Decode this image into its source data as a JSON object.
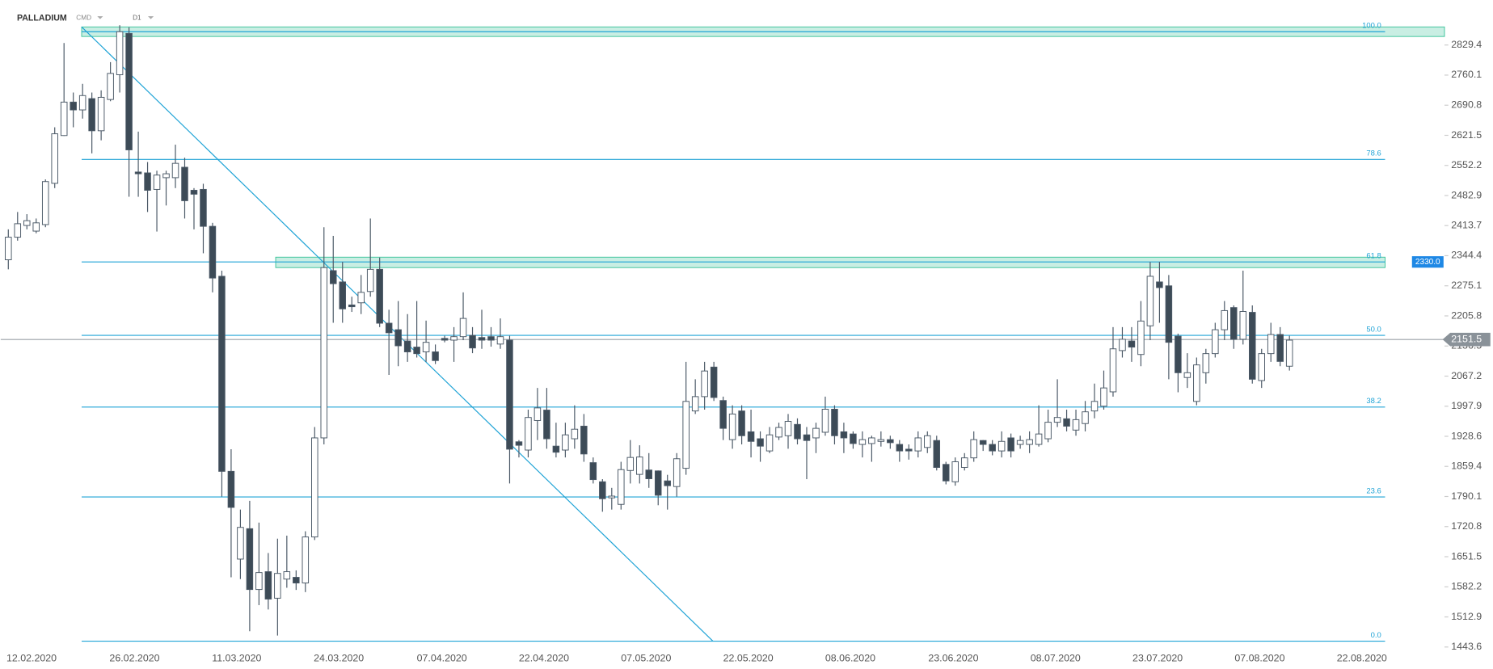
{
  "chart_data": {
    "type": "candlestick",
    "title": "PALLADIUM",
    "instrument_type": "CMD",
    "interval": "D1",
    "up_color": "#ffffff",
    "down_color": "#3d4b57",
    "wick_color": "#4a5866",
    "line_color": "#1fa3d6",
    "zone_color": "#3cc39a",
    "xlim": [
      -0.82,
      154.7
    ],
    "ylim": [
      1437,
      2933
    ],
    "xticks": [
      {
        "value": 2.5,
        "label": "12.02.2020"
      },
      {
        "value": 13.6,
        "label": "26.02.2020"
      },
      {
        "value": 24.6,
        "label": "11.03.2020"
      },
      {
        "value": 35.6,
        "label": "24.03.2020"
      },
      {
        "value": 46.7,
        "label": "07.04.2020"
      },
      {
        "value": 57.7,
        "label": "22.04.2020"
      },
      {
        "value": 68.7,
        "label": "07.05.2020"
      },
      {
        "value": 79.7,
        "label": "22.05.2020"
      },
      {
        "value": 90.7,
        "label": "08.06.2020"
      },
      {
        "value": 101.8,
        "label": "23.06.2020"
      },
      {
        "value": 112.8,
        "label": "08.07.2020"
      },
      {
        "value": 123.8,
        "label": "23.07.2020"
      },
      {
        "value": 134.8,
        "label": "07.08.2020"
      },
      {
        "value": 145.8,
        "label": "22.08.2020"
      }
    ],
    "yticks": [
      2829.4,
      2760.1,
      2690.8,
      2621.5,
      2552.2,
      2482.9,
      2413.7,
      2344.4,
      2275.1,
      2205.8,
      2136.5,
      2067.2,
      1997.9,
      1928.6,
      1859.4,
      1790.1,
      1720.8,
      1651.5,
      1582.2,
      1512.9,
      1443.6
    ],
    "open": [
      2335,
      2387,
      2414,
      2401,
      2416,
      2511,
      2621,
      2698,
      2680,
      2706,
      2632,
      2704,
      2761,
      2856,
      2537,
      2535,
      2497,
      2524,
      2524,
      2548,
      2495,
      2497,
      2412,
      2297,
      1848,
      1646,
      1716,
      1576,
      1617,
      1556,
      1600,
      1604,
      1591,
      1697,
      1925,
      2310,
      2284,
      2231,
      2236,
      2262,
      2313,
      2189,
      2174,
      2148,
      2134,
      2123,
      2123,
      2154,
      2150,
      2158,
      2161,
      2156,
      2158,
      2141,
      2150,
      1916,
      1897,
      1965,
      1989,
      1906,
      1897,
      1923,
      1952,
      1868,
      1824,
      1787,
      1772,
      1850,
      1841,
      1851,
      1849,
      1826,
      1813,
      1855,
      1987,
      2020,
      2088,
      2011,
      1921,
      1987,
      1939,
      1923,
      1895,
      1927,
      1930,
      1956,
      1932,
      1925,
      1938,
      1991,
      1939,
      1934,
      1910,
      1912,
      1917,
      1921,
      1910,
      1899,
      1895,
      1903,
      1919,
      1864,
      1824,
      1857,
      1879,
      1919,
      1910,
      1895,
      1925,
      1910,
      1910,
      1910,
      1923,
      1961,
      1969,
      1943,
      1958,
      1987,
      1998,
      2031,
      2126,
      2148,
      2117,
      2183,
      2284,
      2275,
      2159,
      2064,
      2009,
      2075,
      2119,
      2174,
      2225,
      2152,
      2214,
      2057,
      2119,
      2163,
      2090
    ],
    "high": [
      2405,
      2445,
      2440,
      2430,
      2520,
      2640,
      2834,
      2720,
      2740,
      2720,
      2725,
      2790,
      2875,
      2870,
      2630,
      2560,
      2540,
      2540,
      2600,
      2570,
      2500,
      2510,
      2420,
      2310,
      1899,
      1760,
      1780,
      1730,
      1660,
      1693,
      1700,
      1620,
      1710,
      1950,
      2410,
      2390,
      2330,
      2250,
      2300,
      2430,
      2340,
      2220,
      2240,
      2210,
      2240,
      2195,
      2140,
      2160,
      2180,
      2260,
      2180,
      2220,
      2180,
      2200,
      2160,
      1920,
      1990,
      2040,
      2040,
      1960,
      1960,
      2000,
      1980,
      1880,
      1830,
      1810,
      1870,
      1920,
      1908,
      1890,
      1850,
      1840,
      1890,
      2100,
      2060,
      2100,
      2100,
      2020,
      2000,
      2000,
      1990,
      1940,
      1950,
      1960,
      1980,
      1970,
      1950,
      1960,
      2020,
      2000,
      1960,
      1940,
      1940,
      1930,
      1940,
      1930,
      1920,
      1910,
      1940,
      1940,
      1930,
      1870,
      1880,
      1890,
      1940,
      1920,
      1920,
      1940,
      1935,
      1930,
      1940,
      2000,
      1990,
      2060,
      1990,
      1990,
      2010,
      2050,
      2080,
      2180,
      2180,
      2180,
      2240,
      2330,
      2330,
      2300,
      2165,
      2120,
      2110,
      2130,
      2190,
      2240,
      2230,
      2310,
      2230,
      2130,
      2190,
      2180,
      2160
    ],
    "low": [
      2313,
      2379,
      2405,
      2396,
      2410,
      2500,
      2620,
      2640,
      2660,
      2580,
      2610,
      2700,
      2720,
      2480,
      2480,
      2445,
      2400,
      2460,
      2500,
      2430,
      2405,
      2350,
      2260,
      1790,
      1604,
      1600,
      1480,
      1540,
      1530,
      1470,
      1580,
      1575,
      1570,
      1690,
      1910,
      2190,
      2190,
      2215,
      2210,
      2250,
      2180,
      2070,
      2090,
      2100,
      2110,
      2100,
      2095,
      2145,
      2100,
      2150,
      2120,
      2130,
      2135,
      2130,
      1820,
      1880,
      1880,
      1920,
      1900,
      1880,
      1880,
      1900,
      1870,
      1820,
      1755,
      1760,
      1760,
      1820,
      1820,
      1810,
      1770,
      1760,
      1790,
      1840,
      1980,
      1990,
      2010,
      1920,
      1900,
      1910,
      1880,
      1870,
      1890,
      1920,
      1900,
      1910,
      1830,
      1890,
      1930,
      1910,
      1890,
      1900,
      1880,
      1870,
      1905,
      1900,
      1870,
      1875,
      1880,
      1890,
      1850,
      1818,
      1815,
      1850,
      1870,
      1895,
      1885,
      1880,
      1880,
      1900,
      1890,
      1905,
      1915,
      1950,
      1940,
      1930,
      1940,
      1970,
      1990,
      2020,
      2110,
      2100,
      2090,
      2150,
      2190,
      2060,
      2030,
      2040,
      2000,
      2050,
      2110,
      2150,
      2130,
      2140,
      2050,
      2040,
      2100,
      2090,
      2080
    ],
    "close": [
      2387,
      2418,
      2425,
      2420,
      2515,
      2625,
      2698,
      2680,
      2713,
      2632,
      2709,
      2764,
      2860,
      2588,
      2533,
      2495,
      2530,
      2533,
      2557,
      2471,
      2486,
      2412,
      2293,
      1848,
      1765,
      1719,
      1576,
      1615,
      1554,
      1613,
      1617,
      1591,
      1697,
      1925,
      2317,
      2280,
      2222,
      2227,
      2260,
      2313,
      2189,
      2167,
      2137,
      2123,
      2119,
      2145,
      2103,
      2150,
      2158,
      2200,
      2132,
      2150,
      2150,
      2158,
      1899,
      1908,
      1972,
      1994,
      1923,
      1892,
      1932,
      1945,
      1888,
      1829,
      1785,
      1791,
      1852,
      1880,
      1881,
      1831,
      1793,
      1815,
      1877,
      2009,
      2020,
      2079,
      2018,
      1947,
      1980,
      1930,
      1917,
      1906,
      1932,
      1949,
      1963,
      1923,
      1919,
      1947,
      1991,
      1930,
      1925,
      1912,
      1921,
      1925,
      1921,
      1914,
      1895,
      1895,
      1925,
      1930,
      1857,
      1826,
      1870,
      1879,
      1921,
      1910,
      1895,
      1917,
      1895,
      1919,
      1921,
      1934,
      1961,
      1972,
      1952,
      1967,
      1985,
      2009,
      2040,
      2130,
      2152,
      2134,
      2194,
      2297,
      2271,
      2145,
      2075,
      2075,
      2093,
      2119,
      2174,
      2218,
      2152,
      2216,
      2060,
      2119,
      2163,
      2101,
      2150
    ],
    "fib_range_x": [
      7.9,
      148.3
    ],
    "fib_levels": [
      {
        "label": "100.0",
        "price": 2860
      },
      {
        "label": "78.6",
        "price": 2566
      },
      {
        "label": "61.8",
        "price": 2330
      },
      {
        "label": "50.0",
        "price": 2161
      },
      {
        "label": "38.2",
        "price": 1996
      },
      {
        "label": "23.6",
        "price": 1789
      },
      {
        "label": "0.0",
        "price": 1457
      }
    ],
    "zones": [
      {
        "x": [
          7.9,
          154.7
        ],
        "y": [
          2849,
          2871
        ]
      },
      {
        "x": [
          28.8,
          148.3
        ],
        "y": [
          2317,
          2341
        ]
      }
    ],
    "trendline": {
      "x": [
        7.9,
        75.9
      ],
      "y": [
        2871,
        1457
      ]
    },
    "level_tag": {
      "value": 2330,
      "label": "2330.0"
    },
    "last_price": 2151.5
  }
}
